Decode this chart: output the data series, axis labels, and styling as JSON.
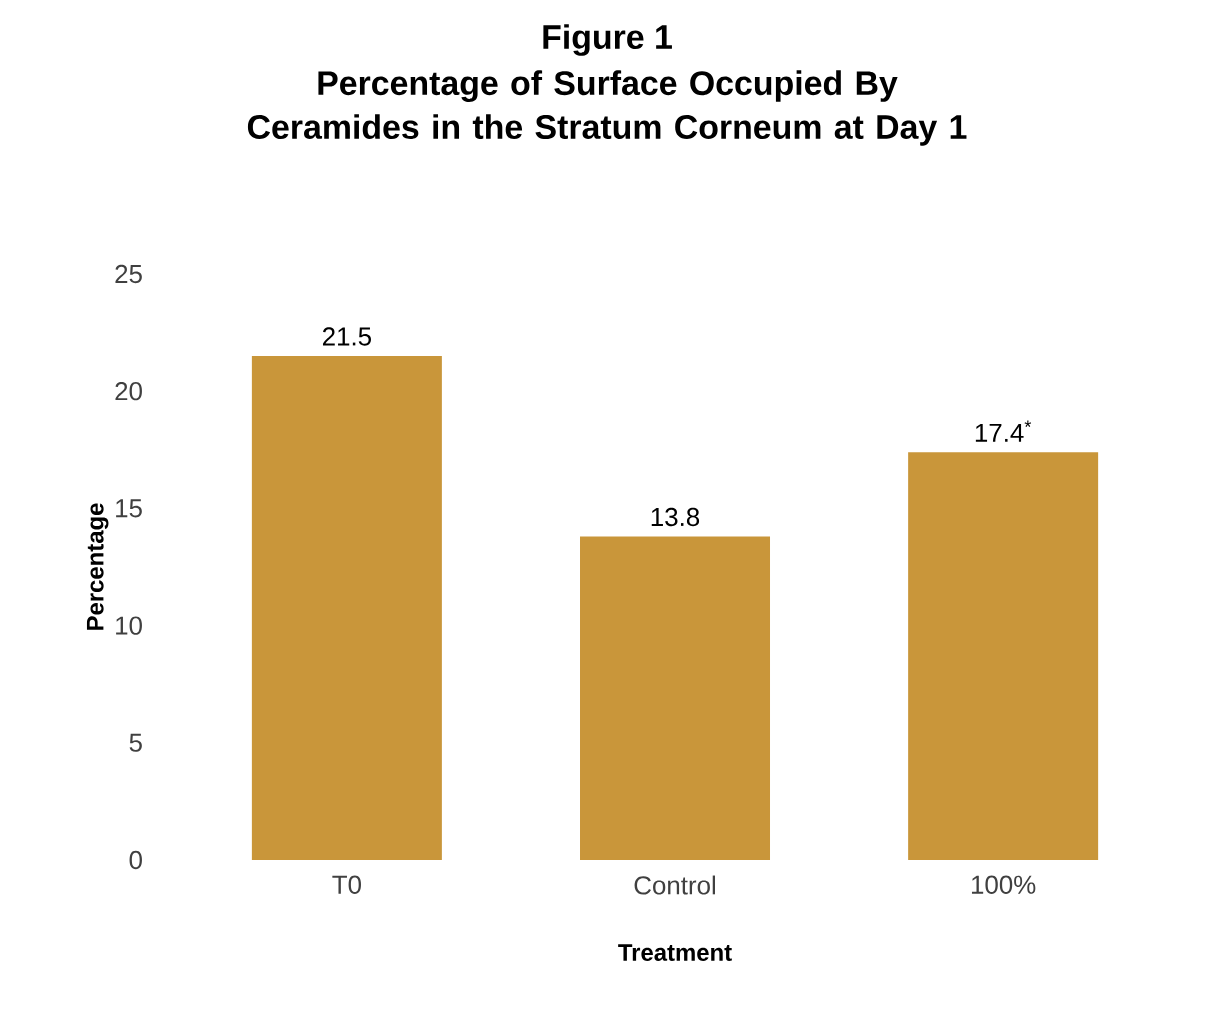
{
  "chart_data": {
    "type": "bar",
    "title": "Figure 1",
    "subtitle": "Percentage of Surface Occupied By Ceramides in the Stratum Corneum at Day 1",
    "xlabel": "Treatment",
    "ylabel": "Percentage",
    "categories": [
      "T0",
      "Control",
      "100%"
    ],
    "values": [
      21.5,
      13.8,
      17.4
    ],
    "value_labels": [
      "21.5",
      "13.8",
      "17.4$^{*}$"
    ],
    "color": "#c9963a",
    "ylim": [
      0,
      25
    ],
    "yticks": [
      0,
      5,
      10,
      15,
      20,
      25
    ],
    "grid": false
  }
}
